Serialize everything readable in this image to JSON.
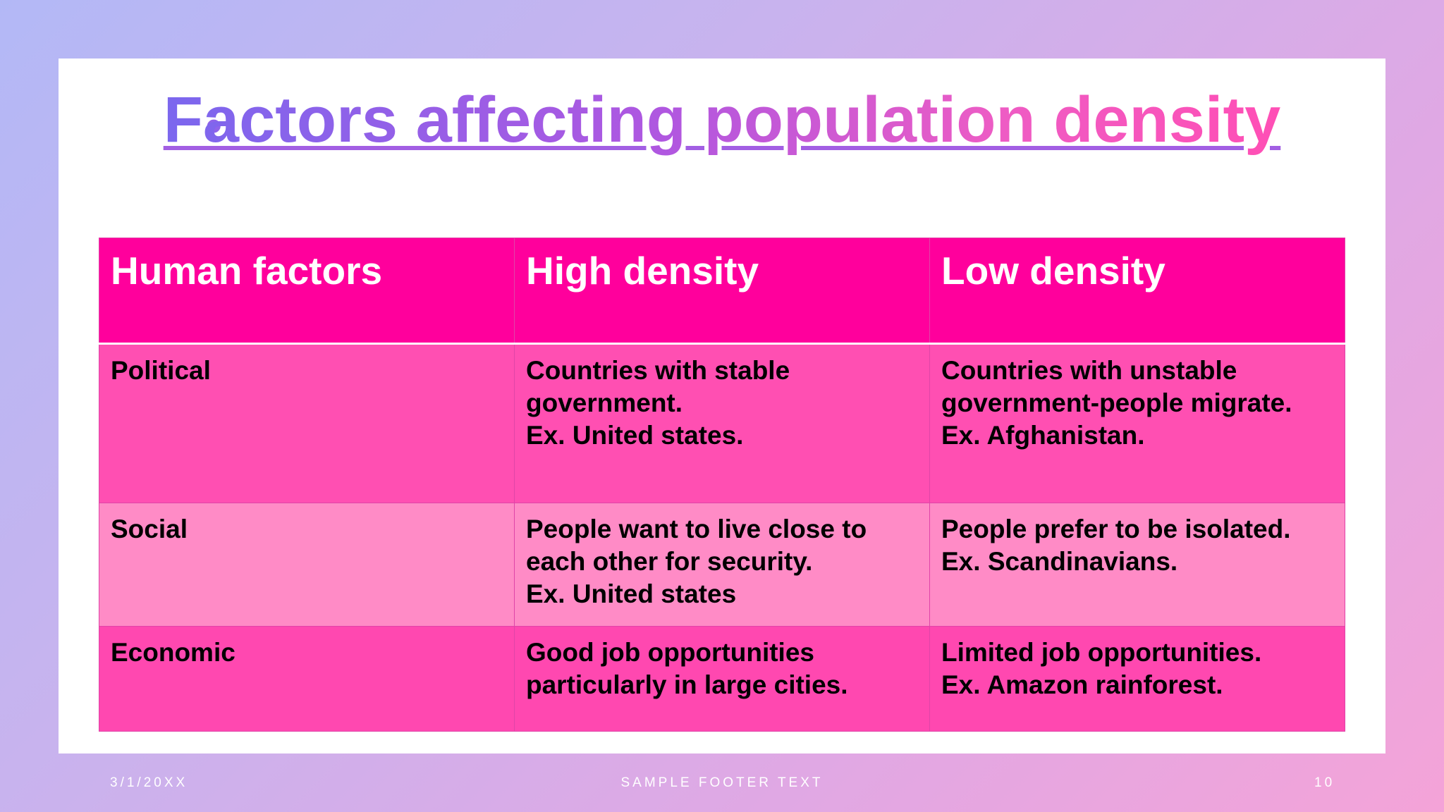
{
  "slide": {
    "title": "Factors affecting population density",
    "bullet": "•"
  },
  "table": {
    "headers": [
      "Human factors",
      "High density",
      "Low density"
    ],
    "rows": [
      {
        "factor": "Political",
        "high": "Countries with stable\ngovernment.\nEx. United states.",
        "low": "Countries with unstable\ngovernment-people migrate.\nEx. Afghanistan."
      },
      {
        "factor": "Social",
        "high": "People want to live close to\neach other for security.\nEx. United states",
        "low": "People prefer to be isolated.\nEx. Scandinavians."
      },
      {
        "factor": "Economic",
        "high": "Good job opportunities\nparticularly in large cities.",
        "low": "Limited job opportunities.\nEx. Amazon rainforest."
      }
    ]
  },
  "footer": {
    "date": "3/1/20XX",
    "text": "SAMPLE FOOTER TEXT",
    "page": "10"
  },
  "colors": {
    "header_fill": "#ff009c",
    "row_political": "#ff4fb2",
    "row_social": "#ff8bc6",
    "row_economic": "#ff48b0"
  }
}
